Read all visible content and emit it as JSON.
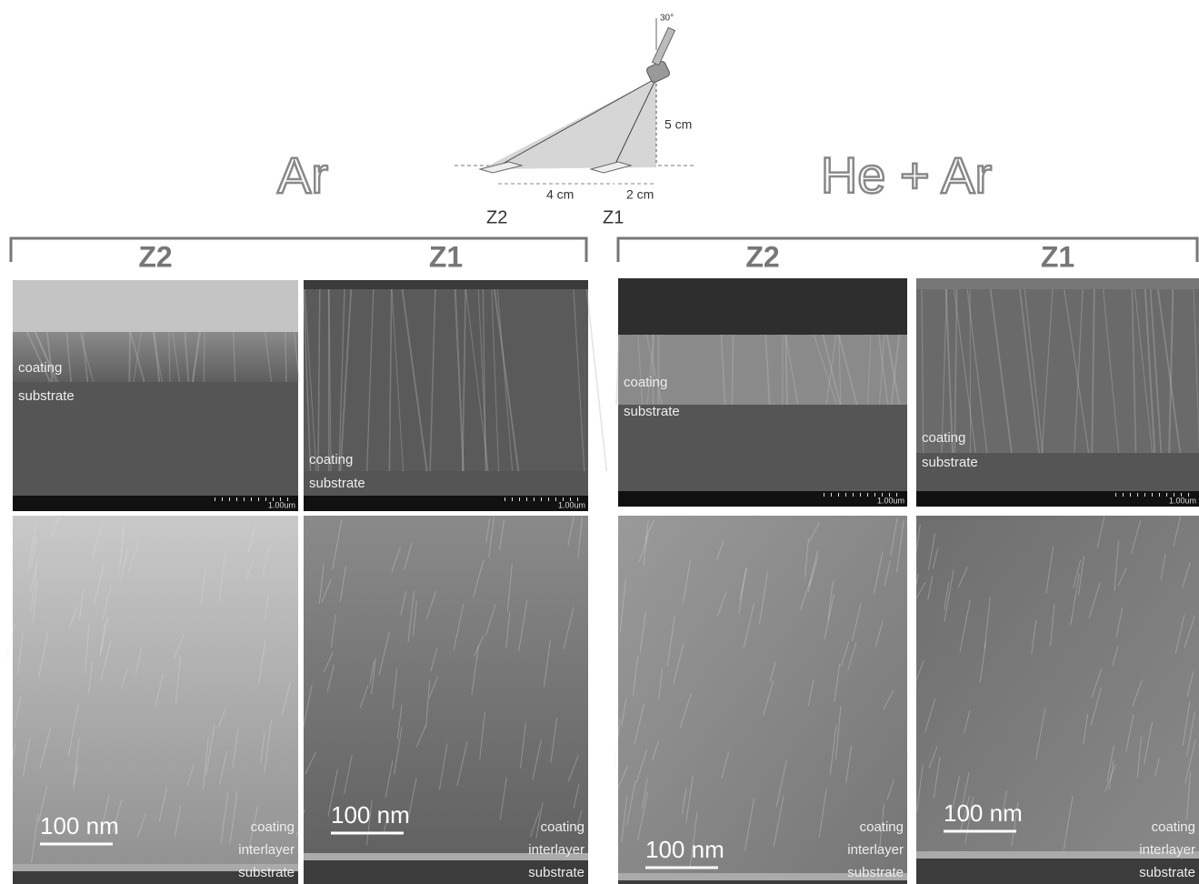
{
  "diagram": {
    "angle": "30°",
    "height": "5 cm",
    "distance_z2": "4 cm",
    "distance_z1": "2 cm",
    "z2": "Z2",
    "z1": "Z1"
  },
  "groups": [
    {
      "title": "Ar",
      "columns": [
        {
          "label": "Z2",
          "sem_top": {
            "labels": [
              "coating",
              "substrate"
            ],
            "scale": "1.00um"
          },
          "sem_bottom": {
            "scale": "100 nm",
            "labels": [
              "coating",
              "interlayer",
              "substrate"
            ]
          }
        },
        {
          "label": "Z1",
          "sem_top": {
            "labels": [
              "coating",
              "substrate"
            ],
            "scale": "1.00um"
          },
          "sem_bottom": {
            "scale": "100 nm",
            "labels": [
              "coating",
              "interlayer",
              "substrate"
            ]
          }
        }
      ]
    },
    {
      "title": "He + Ar",
      "columns": [
        {
          "label": "Z2",
          "sem_top": {
            "labels": [
              "coating",
              "substrate"
            ],
            "scale": "1.00um"
          },
          "sem_bottom": {
            "scale": "100 nm",
            "labels": [
              "coating",
              "interlayer",
              "substrate"
            ]
          }
        },
        {
          "label": "Z1",
          "sem_top": {
            "labels": [
              "coating",
              "substrate"
            ],
            "scale": "1.00um"
          },
          "sem_bottom": {
            "scale": "100 nm",
            "labels": [
              "coating",
              "interlayer",
              "substrate"
            ]
          }
        }
      ]
    }
  ]
}
